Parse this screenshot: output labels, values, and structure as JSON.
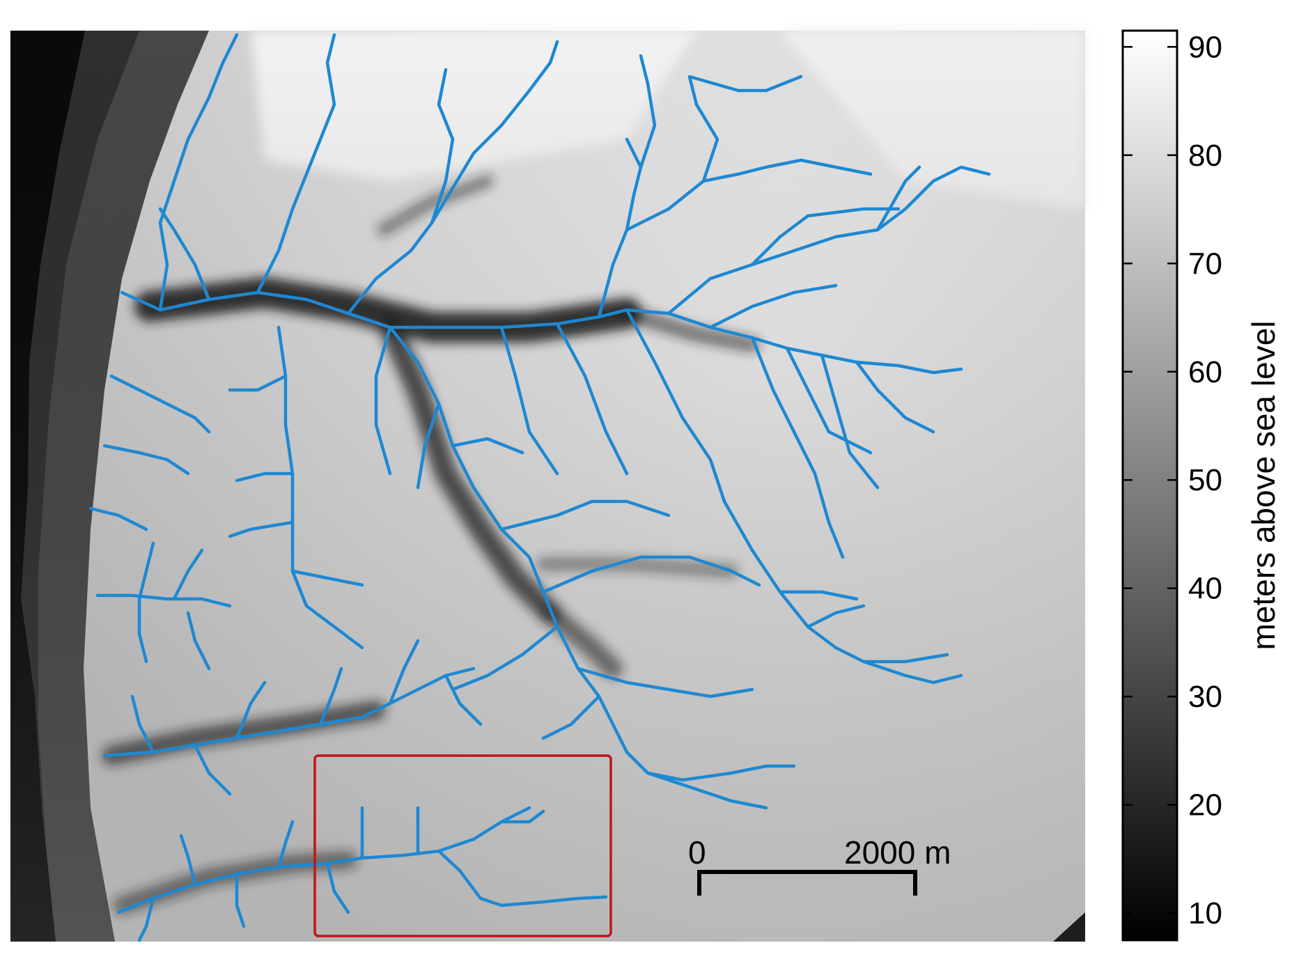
{
  "colorbar": {
    "title": "meters above sea level",
    "ticks": [
      "10",
      "20",
      "30",
      "40",
      "50",
      "60",
      "70",
      "80",
      "90"
    ],
    "range": [
      7.5,
      91.5
    ]
  },
  "scale_bar": {
    "start_label": "0",
    "end_label": "2000 m"
  },
  "colors": {
    "channel": "#1e88d2",
    "highlight_box": "#c0141a",
    "river": "#0a0a0a"
  }
}
